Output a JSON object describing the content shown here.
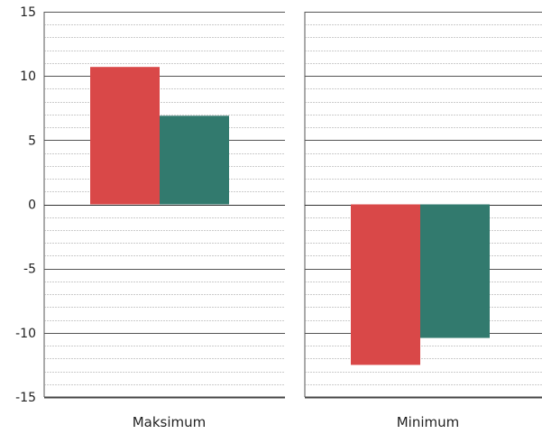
{
  "chart_data": {
    "type": "bar",
    "title": "",
    "xlabel": "",
    "ylabel": "",
    "ylim": [
      -15,
      15
    ],
    "yticks": [
      15,
      10,
      5,
      0,
      -5,
      -10,
      -15
    ],
    "ytick_labels": [
      "15",
      "10",
      "5",
      "0",
      "-5",
      "-10",
      "-15"
    ],
    "minor_step": 1,
    "grid": true,
    "legend": "none",
    "categories": [
      "Maksimum",
      "Minimum"
    ],
    "series": [
      {
        "color": "#d94848",
        "values": [
          10.7,
          -12.5
        ]
      },
      {
        "color": "#327a6e",
        "values": [
          6.9,
          -10.4
        ]
      }
    ]
  }
}
